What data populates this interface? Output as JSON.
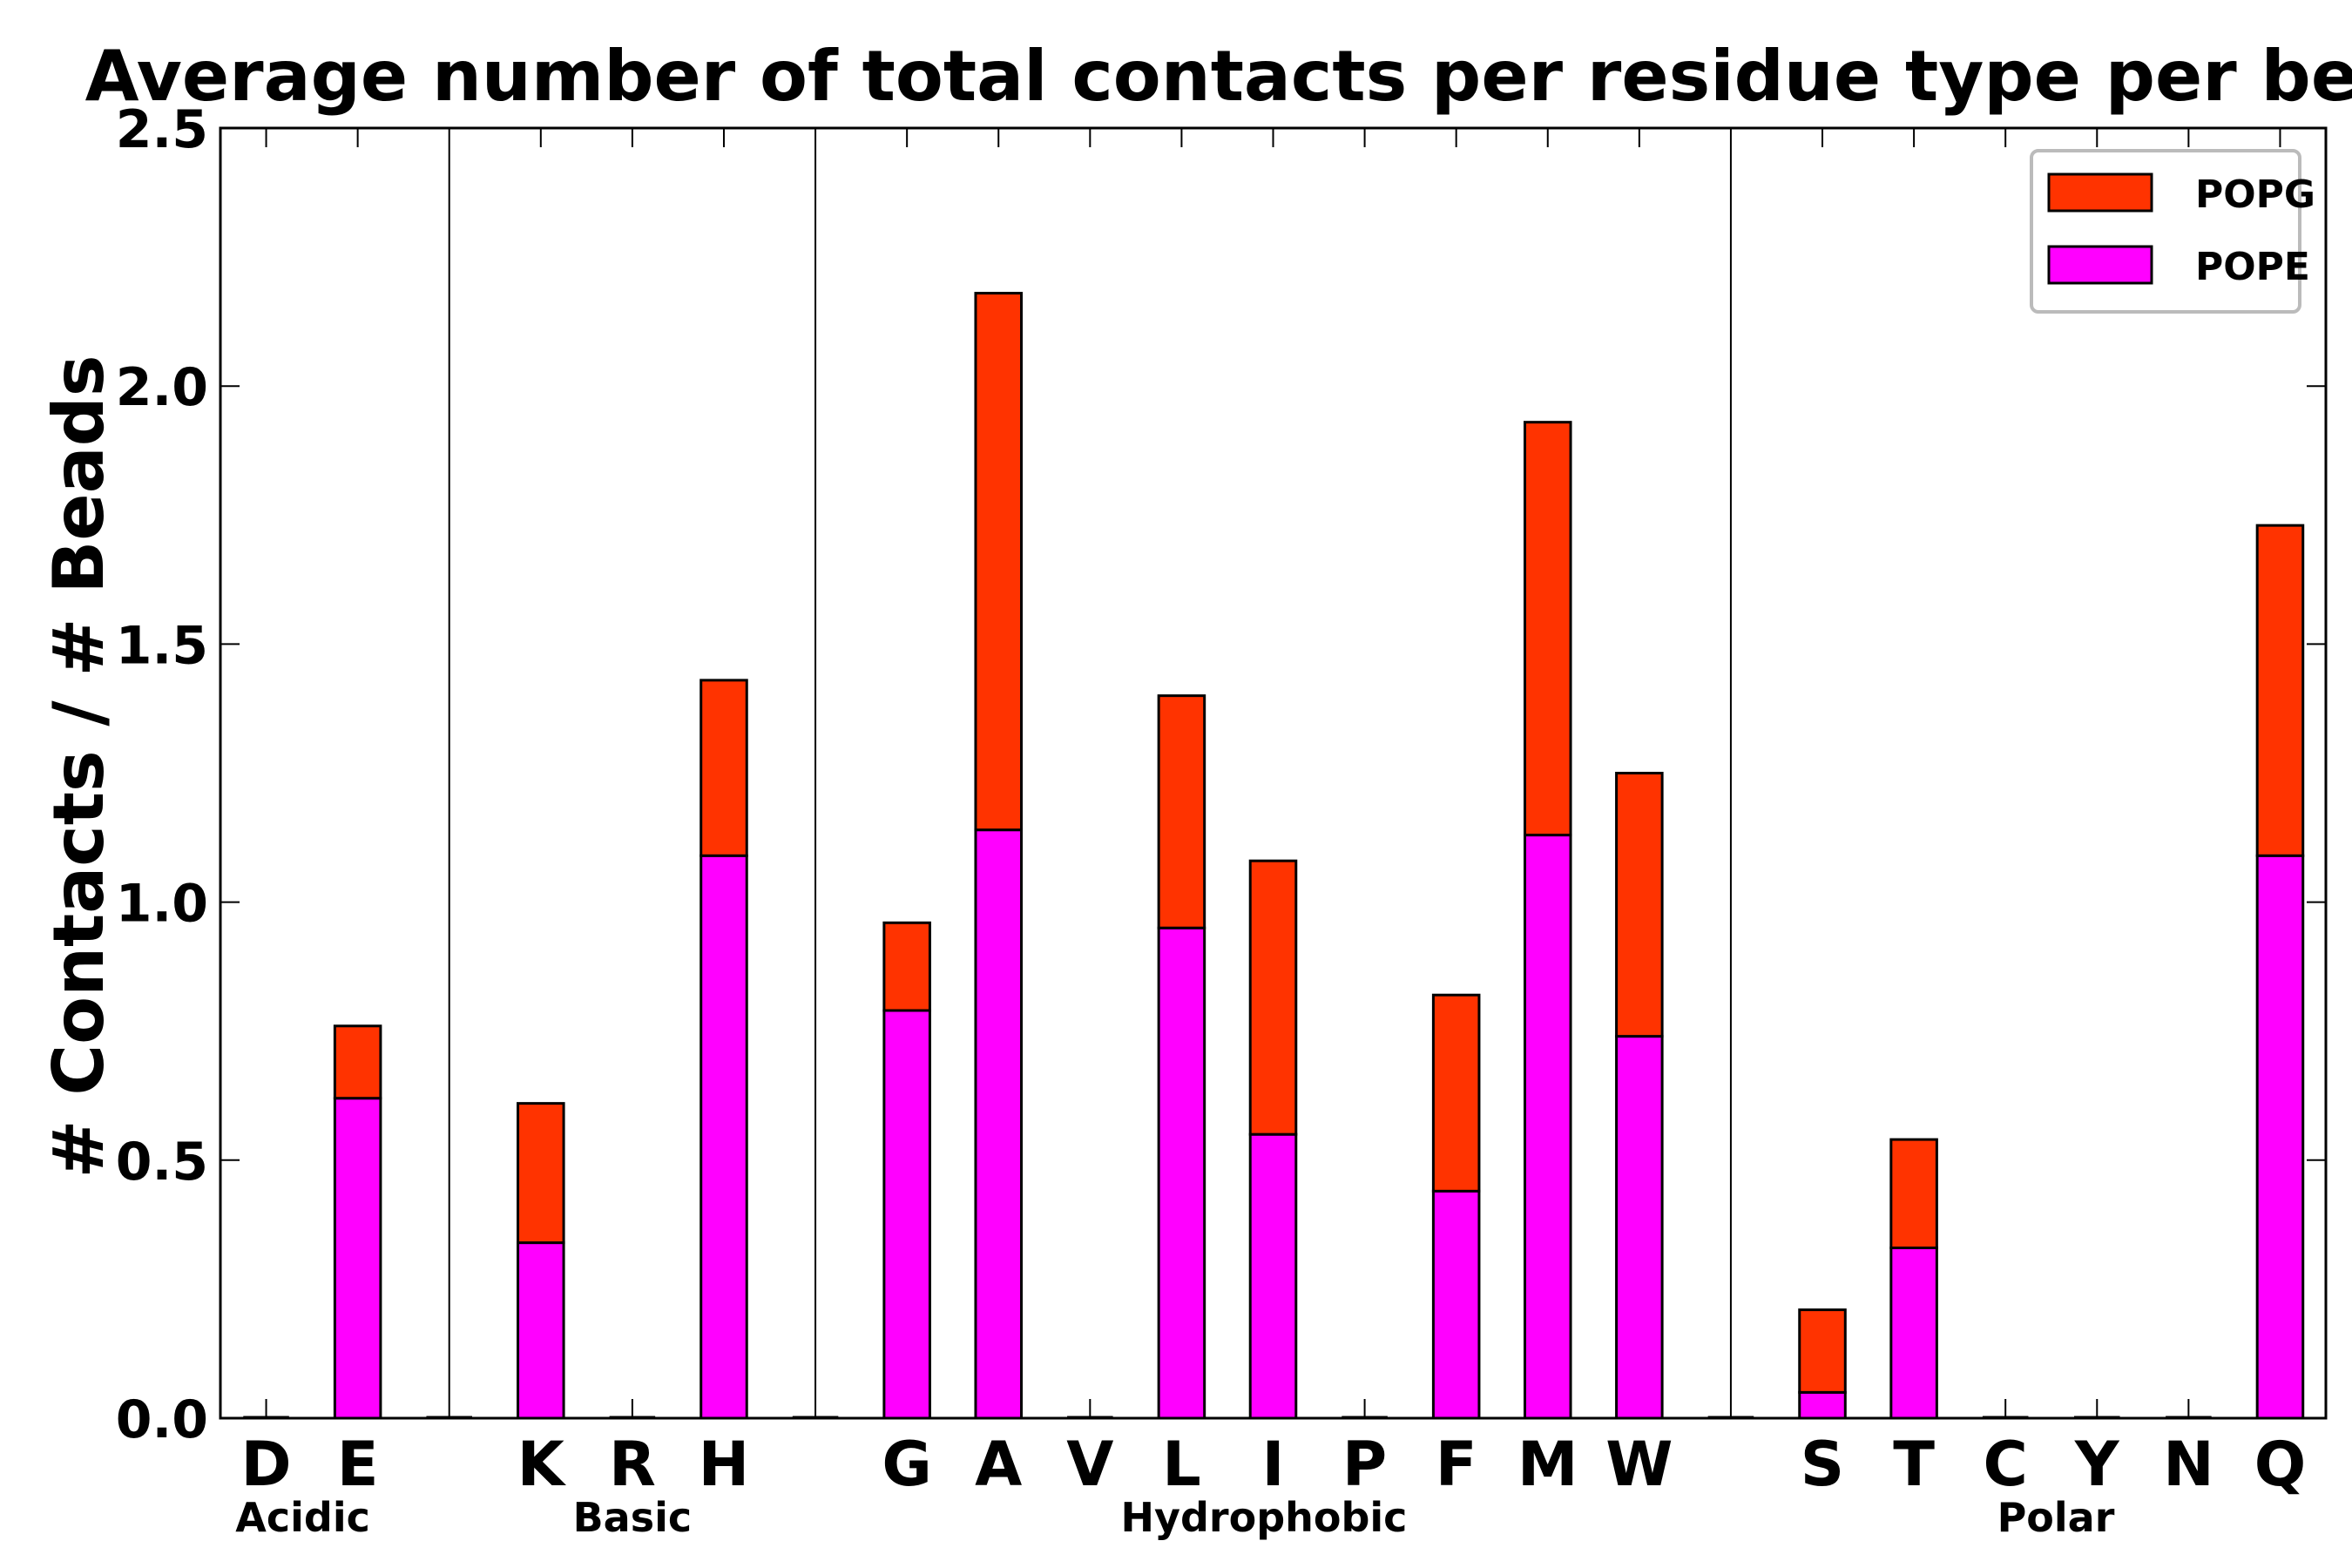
{
  "chart_data": {
    "type": "bar",
    "stacked": true,
    "title": "Average number of total contacts per residue type per bead",
    "xlabel": "",
    "ylabel": "# Contacts / # Beads",
    "ylim": [
      0,
      2.5
    ],
    "yticks": [
      "0.0",
      "0.5",
      "1.0",
      "1.5",
      "2.0",
      "2.5"
    ],
    "categories": [
      "D",
      "E",
      "K",
      "R",
      "H",
      "G",
      "A",
      "V",
      "L",
      "I",
      "P",
      "F",
      "M",
      "W",
      "S",
      "T",
      "C",
      "Y",
      "N",
      "Q"
    ],
    "category_slots": [
      0,
      1,
      3,
      4,
      5,
      7,
      8,
      9,
      10,
      11,
      12,
      13,
      14,
      15,
      17,
      18,
      19,
      20,
      21,
      22
    ],
    "separator_slots": [
      2,
      6,
      16
    ],
    "groups": [
      {
        "label": "Acidic",
        "slot": 0.4
      },
      {
        "label": "Basic",
        "slot": 4.0
      },
      {
        "label": "Hydrophobic",
        "slot": 10.9
      },
      {
        "label": "Polar",
        "slot": 19.55
      }
    ],
    "series": [
      {
        "name": "POPE",
        "color": "#FF00FF",
        "values": [
          0,
          0.62,
          0.34,
          0,
          1.09,
          0.79,
          1.14,
          0,
          0.95,
          0.55,
          0,
          0.44,
          1.13,
          0.74,
          0.05,
          0.33,
          0,
          0,
          0,
          1.09
        ]
      },
      {
        "name": "POPG",
        "color": "#FF3300",
        "values": [
          0,
          0.14,
          0.27,
          0,
          0.34,
          0.17,
          1.04,
          0,
          0.45,
          0.53,
          0,
          0.38,
          0.8,
          0.51,
          0.16,
          0.21,
          0,
          0,
          0,
          0.64
        ]
      }
    ],
    "legend": {
      "position": "top-right",
      "entries": [
        "POPG",
        "POPE"
      ]
    }
  }
}
